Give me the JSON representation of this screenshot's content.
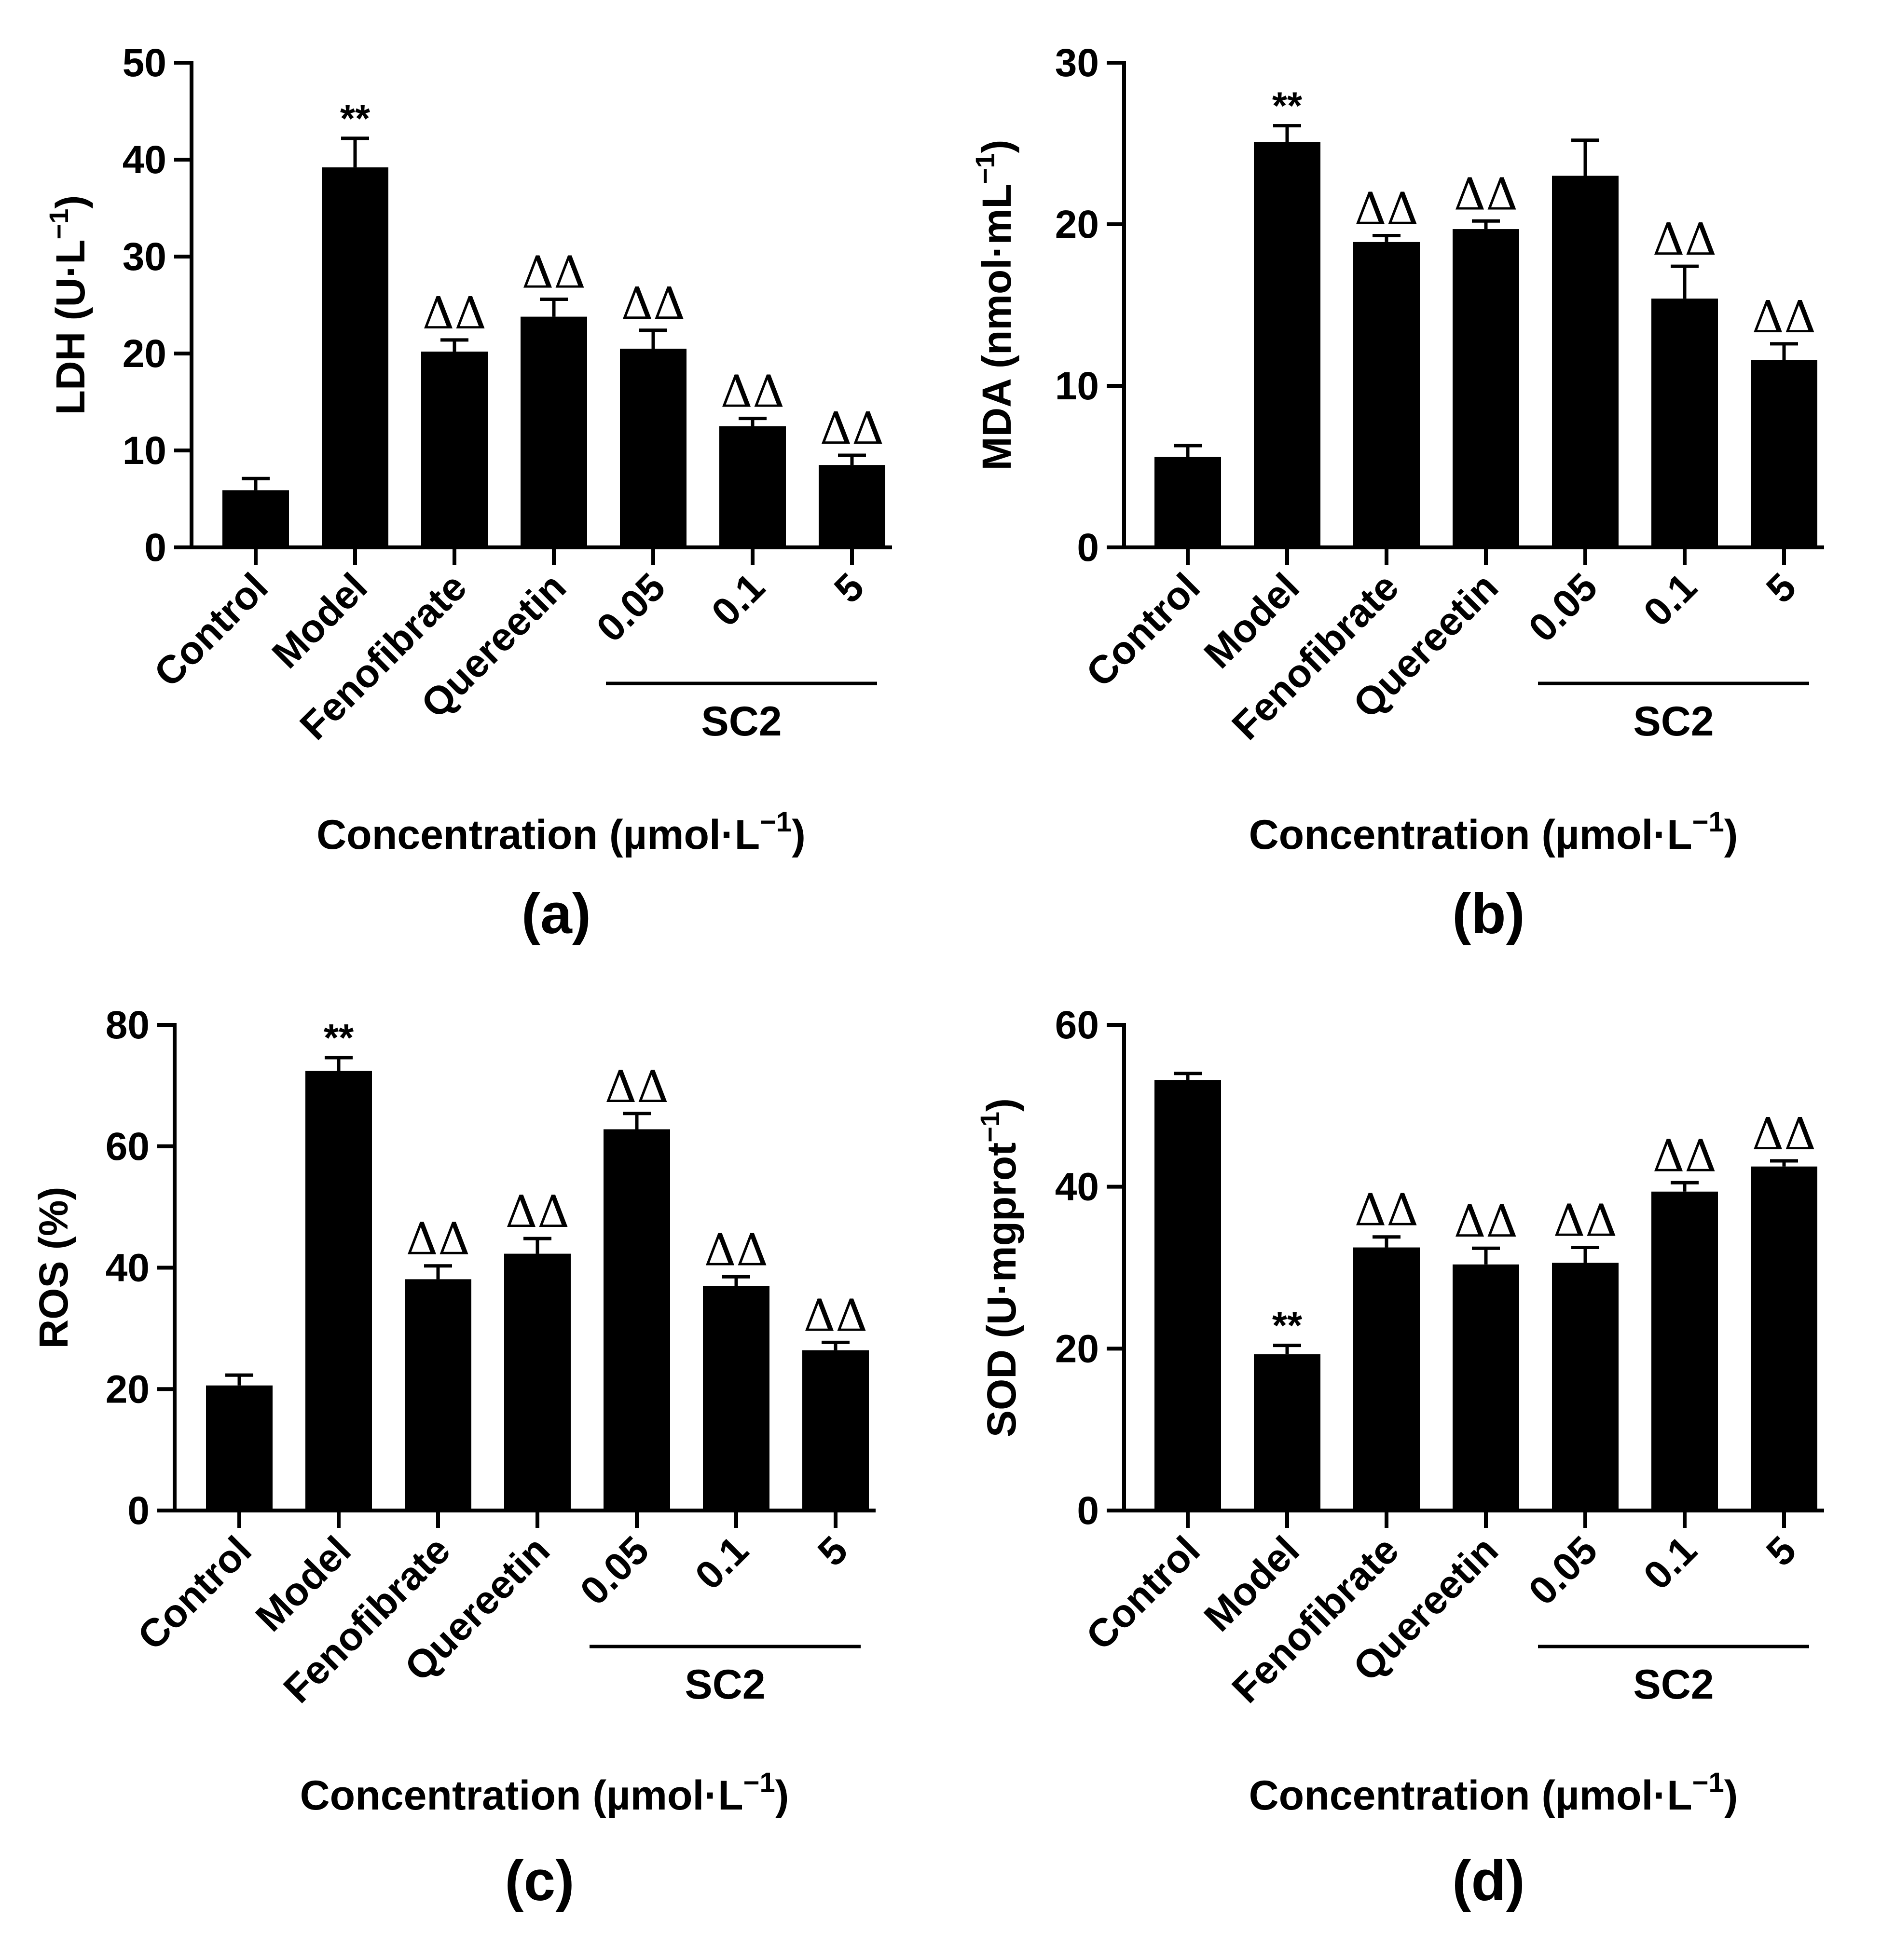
{
  "colors": {
    "bar": "#000000",
    "axis": "#000000",
    "background": "#ffffff"
  },
  "chart_data": [
    {
      "panel": "(a)",
      "type": "bar",
      "categories": [
        "Control",
        "Model",
        "Fenofibrate",
        "Quereetin",
        "0.05",
        "0.1",
        "5"
      ],
      "values": [
        5.9,
        39.2,
        20.2,
        23.8,
        20.5,
        12.5,
        8.5
      ],
      "errors": [
        1.2,
        3.0,
        1.2,
        1.8,
        1.9,
        0.8,
        1.0
      ],
      "significance": [
        "",
        "**",
        "ΔΔ",
        "ΔΔ",
        "ΔΔ",
        "ΔΔ",
        "ΔΔ"
      ],
      "ylabel": {
        "text": "LDH (U·L",
        "sup": "−1",
        "close": ")"
      },
      "xlabel": {
        "text": "Concentration (µmol·L",
        "sup": "−1",
        "close": ")"
      },
      "group_label": "SC2",
      "ylim": [
        0,
        50
      ],
      "yticks": [
        "0",
        "10",
        "20",
        "30",
        "40",
        "50"
      ]
    },
    {
      "panel": "(b)",
      "type": "bar",
      "categories": [
        "Control",
        "Model",
        "Fenofibrate",
        "Quereetin",
        "0.05",
        "0.1",
        "5"
      ],
      "values": [
        5.6,
        25.1,
        18.9,
        19.7,
        23.0,
        15.4,
        11.6
      ],
      "errors": [
        0.7,
        1.0,
        0.4,
        0.5,
        2.2,
        2.0,
        1.0
      ],
      "significance": [
        "",
        "**",
        "ΔΔ",
        "ΔΔ",
        "",
        "ΔΔ",
        "ΔΔ"
      ],
      "ylabel": {
        "text": "MDA (nmol·mL",
        "sup": "−1",
        "close": ")"
      },
      "xlabel": {
        "text": "Concentration (µmol·L",
        "sup": "−1",
        "close": ")"
      },
      "group_label": "SC2",
      "ylim": [
        0,
        30
      ],
      "yticks": [
        "0",
        "10",
        "20",
        "30"
      ]
    },
    {
      "panel": "(c)",
      "type": "bar",
      "categories": [
        "Control",
        "Model",
        "Fenofibrate",
        "Quereetin",
        "0.05",
        "0.1",
        "5"
      ],
      "values": [
        20.6,
        72.4,
        38.1,
        42.3,
        62.8,
        37.0,
        26.4
      ],
      "errors": [
        1.7,
        2.2,
        2.2,
        2.5,
        2.6,
        1.5,
        1.3
      ],
      "significance": [
        "",
        "**",
        "ΔΔ",
        "ΔΔ",
        "ΔΔ",
        "ΔΔ",
        "ΔΔ"
      ],
      "ylabel": {
        "text": "ROS (%)",
        "sup": "",
        "close": ""
      },
      "xlabel": {
        "text": "Concentration (µmol·L",
        "sup": "−1",
        "close": ")"
      },
      "group_label": "SC2",
      "ylim": [
        0,
        80
      ],
      "yticks": [
        "0",
        "20",
        "40",
        "60",
        "80"
      ]
    },
    {
      "panel": "(d)",
      "type": "bar",
      "categories": [
        "Control",
        "Model",
        "Fenofibrate",
        "Quereetin",
        "0.05",
        "0.1",
        "5"
      ],
      "values": [
        53.2,
        19.3,
        32.5,
        30.4,
        30.6,
        39.4,
        42.5
      ],
      "errors": [
        0.8,
        1.1,
        1.3,
        2.0,
        1.9,
        1.1,
        0.7
      ],
      "significance": [
        "",
        "**",
        "ΔΔ",
        "ΔΔ",
        "ΔΔ",
        "ΔΔ",
        "ΔΔ"
      ],
      "ylabel": {
        "text": "SOD (U·mgprot",
        "sup": "−1",
        "close": ")"
      },
      "xlabel": {
        "text": "Concentration (µmol·L",
        "sup": "−1",
        "close": ")"
      },
      "group_label": "SC2",
      "ylim": [
        0,
        60
      ],
      "yticks": [
        "0",
        "20",
        "40",
        "60"
      ]
    }
  ]
}
